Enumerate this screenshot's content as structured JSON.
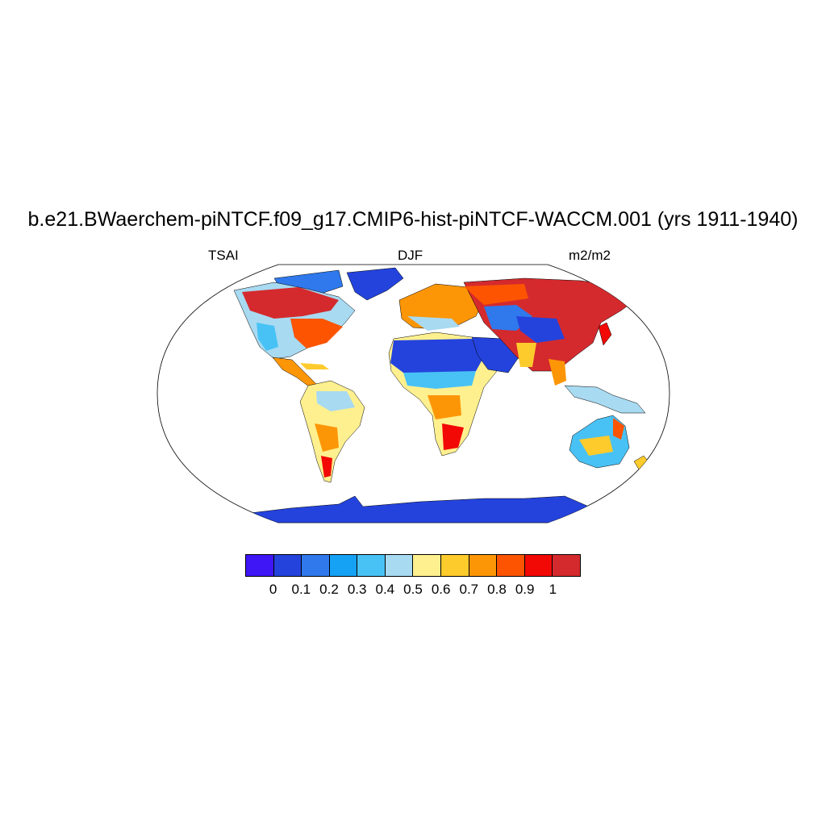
{
  "figure": {
    "title": "b.e21.BWaerchem-piNTCF.f09_g17.CMIP6-hist-piNTCF-WACCM.001 (yrs 1911-1940)",
    "left_label": "TSAI",
    "center_label": "DJF",
    "right_label": "m2/m2"
  },
  "colorbar": {
    "colors": [
      "#3f16f6",
      "#2443dd",
      "#2f79ed",
      "#15a2f5",
      "#48c2f5",
      "#a8daf1",
      "#fff08f",
      "#fdcb2b",
      "#fd9606",
      "#fc5400",
      "#f20905",
      "#d42a2e"
    ],
    "labels": [
      "0",
      "0.1",
      "0.2",
      "0.3",
      "0.4",
      "0.5",
      "0.6",
      "0.7",
      "0.8",
      "0.9",
      "1"
    ]
  },
  "map": {
    "projection": "Robinson",
    "field": "TSAI",
    "season": "DJF",
    "units": "m2/m2"
  }
}
